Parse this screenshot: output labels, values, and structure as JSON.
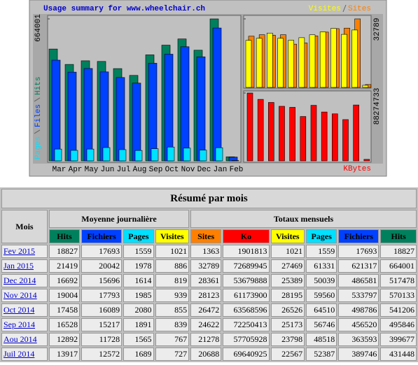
{
  "chart_data": [
    {
      "type": "bar",
      "title": "Usage summary for www.wheelchair.ch",
      "categories": [
        "Mar",
        "Apr",
        "May",
        "Jun",
        "Jul",
        "Aug",
        "Sep",
        "Oct",
        "Nov",
        "Dec",
        "Jan",
        "Feb"
      ],
      "series": [
        {
          "name": "Hits",
          "color": "#00805c",
          "values": [
            523000,
            451000,
            468000,
            465000,
            431448,
            399677,
            495846,
            541206,
            570133,
            517478,
            664001,
            18827
          ]
        },
        {
          "name": "Files",
          "color": "#0040ff",
          "values": [
            471000,
            415000,
            432000,
            416000,
            389746,
            363593,
            456520,
            498786,
            533797,
            486581,
            621317,
            17693
          ]
        },
        {
          "name": "Pages",
          "color": "#00e0ff",
          "values": [
            55000,
            49000,
            55000,
            62000,
            52387,
            48518,
            56746,
            64510,
            59560,
            50039,
            61331,
            1559
          ]
        }
      ],
      "ylim": [
        0,
        664001
      ],
      "yticks": [
        664001
      ]
    },
    {
      "type": "bar",
      "series": [
        {
          "name": "Visites",
          "color": "#ffff00",
          "values": [
            22500,
            23500,
            26000,
            23500,
            22567,
            23798,
            25173,
            26526,
            28195,
            25389,
            27469,
            1021
          ]
        },
        {
          "name": "Sites",
          "color": "#ff8000",
          "values": [
            24500,
            25200,
            25000,
            25200,
            20688,
            21278,
            24622,
            26472,
            28123,
            28361,
            32789,
            1363
          ]
        }
      ],
      "ylim": [
        0,
        32789
      ],
      "yticks": [
        32789
      ]
    },
    {
      "type": "bar",
      "series": [
        {
          "name": "KBytes",
          "color": "#ff0000",
          "values": [
            88274733,
            80000000,
            76000000,
            71000000,
            69640925,
            57705928,
            72250413,
            63568596,
            61173900,
            53679888,
            72689945,
            1901813
          ]
        }
      ],
      "ylim": [
        0,
        88274733
      ],
      "yticks": [
        88274733
      ]
    }
  ],
  "table": {
    "title": "Résumé par mois",
    "mois": "Mois",
    "groups": [
      "Moyenne journalière",
      "Totaux mensuels"
    ],
    "columns": [
      "Hits",
      "Fichiers",
      "Pages",
      "Visites",
      "Sites",
      "Ko",
      "Visites",
      "Pages",
      "Fichiers",
      "Hits"
    ],
    "rows": [
      [
        "Fev 2015",
        18827,
        17693,
        1559,
        1021,
        1363,
        1901813,
        1021,
        1559,
        17693,
        18827
      ],
      [
        "Jan 2015",
        21419,
        20042,
        1978,
        886,
        32789,
        72689945,
        27469,
        61331,
        621317,
        664001
      ],
      [
        "Dec 2014",
        16692,
        15696,
        1614,
        819,
        28361,
        53679888,
        25389,
        50039,
        486581,
        517478
      ],
      [
        "Nov 2014",
        19004,
        17793,
        1985,
        939,
        28123,
        61173900,
        28195,
        59560,
        533797,
        570133
      ],
      [
        "Oct 2014",
        17458,
        16089,
        2080,
        855,
        26472,
        63568596,
        26526,
        64510,
        498786,
        541206
      ],
      [
        "Sep 2014",
        16528,
        15217,
        1891,
        839,
        24622,
        72250413,
        25173,
        56746,
        456520,
        495846
      ],
      [
        "Aou 2014",
        12892,
        11728,
        1565,
        767,
        21278,
        57705928,
        23798,
        48518,
        363593,
        399677
      ],
      [
        "Juil 2014",
        13917,
        12572,
        1689,
        727,
        20688,
        69640925,
        22567,
        52387,
        389746,
        431448
      ]
    ]
  }
}
